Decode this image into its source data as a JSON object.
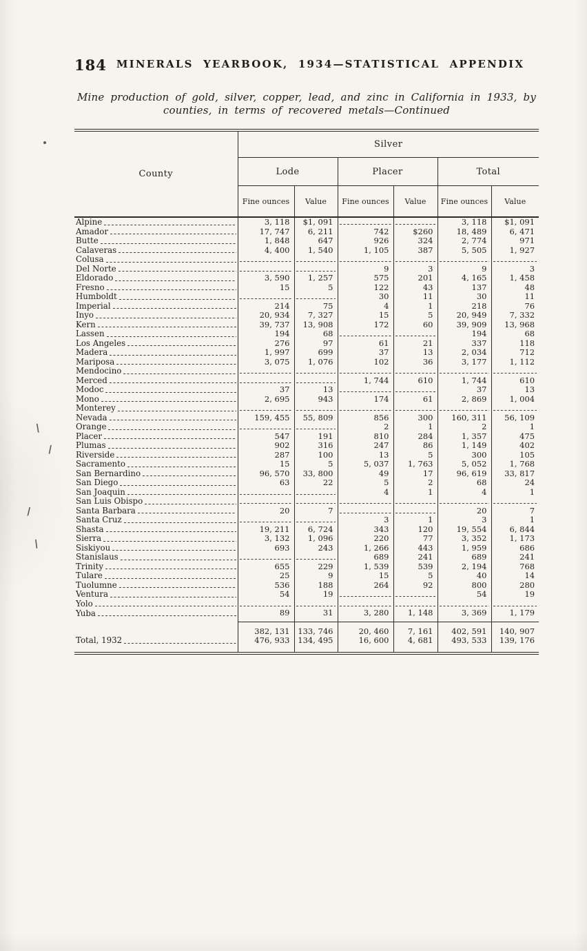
{
  "colors": {
    "paper": "#f6f4ee",
    "ink": "#201e1a"
  },
  "page_header": {
    "page_number": "184",
    "title": "MINERALS YEARBOOK, 1934—STATISTICAL APPENDIX"
  },
  "caption": {
    "line1": "Mine production of gold, silver, copper, lead, and zinc in California in 1933, by",
    "line2": "counties, in terms of recovered metals—Continued"
  },
  "table": {
    "corner_header": "County",
    "span_header": "Silver",
    "group_headers": [
      "Lode",
      "Placer",
      "Total"
    ],
    "sub_headers": [
      "Fine ounces",
      "Value",
      "Fine ounces",
      "Value",
      "Fine ounces",
      "Value"
    ],
    "rows": [
      {
        "county": "Alpine",
        "values": [
          "3, 118",
          "$1, 091",
          null,
          null,
          "3, 118",
          "$1, 091"
        ]
      },
      {
        "county": "Amador",
        "values": [
          "17, 747",
          "6, 211",
          "742",
          "$260",
          "18, 489",
          "6, 471"
        ]
      },
      {
        "county": "Butte",
        "values": [
          "1, 848",
          "647",
          "926",
          "324",
          "2, 774",
          "971"
        ]
      },
      {
        "county": "Calaveras",
        "values": [
          "4, 400",
          "1, 540",
          "1, 105",
          "387",
          "5, 505",
          "1, 927"
        ]
      },
      {
        "county": "Colusa",
        "values": [
          null,
          null,
          null,
          null,
          null,
          null
        ]
      },
      {
        "county": "Del Norte",
        "values": [
          null,
          null,
          "9",
          "3",
          "9",
          "3"
        ]
      },
      {
        "county": "Eldorado",
        "values": [
          "3, 590",
          "1, 257",
          "575",
          "201",
          "4, 165",
          "1, 458"
        ]
      },
      {
        "county": "Fresno",
        "values": [
          "15",
          "5",
          "122",
          "43",
          "137",
          "48"
        ]
      },
      {
        "county": "Humboldt",
        "values": [
          null,
          null,
          "30",
          "11",
          "30",
          "11"
        ]
      },
      {
        "county": "Imperial",
        "values": [
          "214",
          "75",
          "4",
          "1",
          "218",
          "76"
        ]
      },
      {
        "county": "Inyo",
        "values": [
          "20, 934",
          "7, 327",
          "15",
          "5",
          "20, 949",
          "7, 332"
        ]
      },
      {
        "county": "Kern",
        "values": [
          "39, 737",
          "13, 908",
          "172",
          "60",
          "39, 909",
          "13, 968"
        ]
      },
      {
        "county": "Lassen",
        "values": [
          "194",
          "68",
          null,
          null,
          "194",
          "68"
        ]
      },
      {
        "county": "Los Angeles",
        "values": [
          "276",
          "97",
          "61",
          "21",
          "337",
          "118"
        ]
      },
      {
        "county": "Madera",
        "values": [
          "1, 997",
          "699",
          "37",
          "13",
          "2, 034",
          "712"
        ]
      },
      {
        "county": "Mariposa",
        "values": [
          "3, 075",
          "1, 076",
          "102",
          "36",
          "3, 177",
          "1, 112"
        ]
      },
      {
        "county": "Mendocino",
        "values": [
          null,
          null,
          null,
          null,
          null,
          null
        ]
      },
      {
        "county": "Merced",
        "values": [
          null,
          null,
          "1, 744",
          "610",
          "1, 744",
          "610"
        ]
      },
      {
        "county": "Modoc",
        "values": [
          "37",
          "13",
          null,
          null,
          "37",
          "13"
        ]
      },
      {
        "county": "Mono",
        "values": [
          "2, 695",
          "943",
          "174",
          "61",
          "2, 869",
          "1, 004"
        ]
      },
      {
        "county": "Monterey",
        "values": [
          null,
          null,
          null,
          null,
          null,
          null
        ]
      },
      {
        "county": "Nevada",
        "values": [
          "159, 455",
          "55, 809",
          "856",
          "300",
          "160, 311",
          "56, 109"
        ]
      },
      {
        "county": "Orange",
        "values": [
          null,
          null,
          "2",
          "1",
          "2",
          "1"
        ]
      },
      {
        "county": "Placer",
        "values": [
          "547",
          "191",
          "810",
          "284",
          "1, 357",
          "475"
        ]
      },
      {
        "county": "Plumas",
        "values": [
          "902",
          "316",
          "247",
          "86",
          "1, 149",
          "402"
        ]
      },
      {
        "county": "Riverside",
        "values": [
          "287",
          "100",
          "13",
          "5",
          "300",
          "105"
        ]
      },
      {
        "county": "Sacramento",
        "values": [
          "15",
          "5",
          "5, 037",
          "1, 763",
          "5, 052",
          "1, 768"
        ]
      },
      {
        "county": "San Bernardino",
        "values": [
          "96, 570",
          "33, 800",
          "49",
          "17",
          "96, 619",
          "33, 817"
        ]
      },
      {
        "county": "San Diego",
        "values": [
          "63",
          "22",
          "5",
          "2",
          "68",
          "24"
        ]
      },
      {
        "county": "San Joaquin",
        "values": [
          null,
          null,
          "4",
          "1",
          "4",
          "1"
        ]
      },
      {
        "county": "San Luis Obispo",
        "values": [
          null,
          null,
          null,
          null,
          null,
          null
        ]
      },
      {
        "county": "Santa Barbara",
        "values": [
          "20",
          "7",
          null,
          null,
          "20",
          "7"
        ]
      },
      {
        "county": "Santa Cruz",
        "values": [
          null,
          null,
          "3",
          "1",
          "3",
          "1"
        ]
      },
      {
        "county": "Shasta",
        "values": [
          "19, 211",
          "6, 724",
          "343",
          "120",
          "19, 554",
          "6, 844"
        ]
      },
      {
        "county": "Sierra",
        "values": [
          "3, 132",
          "1, 096",
          "220",
          "77",
          "3, 352",
          "1, 173"
        ]
      },
      {
        "county": "Siskiyou",
        "values": [
          "693",
          "243",
          "1, 266",
          "443",
          "1, 959",
          "686"
        ]
      },
      {
        "county": "Stanislaus",
        "values": [
          null,
          null,
          "689",
          "241",
          "689",
          "241"
        ]
      },
      {
        "county": "Trinity",
        "values": [
          "655",
          "229",
          "1, 539",
          "539",
          "2, 194",
          "768"
        ]
      },
      {
        "county": "Tulare",
        "values": [
          "25",
          "9",
          "15",
          "5",
          "40",
          "14"
        ]
      },
      {
        "county": "Tuolumne",
        "values": [
          "536",
          "188",
          "264",
          "92",
          "800",
          "280"
        ]
      },
      {
        "county": "Ventura",
        "values": [
          "54",
          "19",
          null,
          null,
          "54",
          "19"
        ]
      },
      {
        "county": "Yolo",
        "values": [
          null,
          null,
          null,
          null,
          null,
          null
        ]
      },
      {
        "county": "Yuba",
        "values": [
          "89",
          "31",
          "3, 280",
          "1, 148",
          "3, 369",
          "1, 179"
        ]
      }
    ],
    "total_rows": [
      {
        "label": "",
        "values": [
          "382, 131",
          "133, 746",
          "20, 460",
          "7, 161",
          "402, 591",
          "140, 907"
        ]
      },
      {
        "label": "Total, 1932",
        "values": [
          "476, 933",
          "134, 495",
          "16, 600",
          "4, 681",
          "493, 533",
          "139, 176"
        ]
      }
    ]
  }
}
